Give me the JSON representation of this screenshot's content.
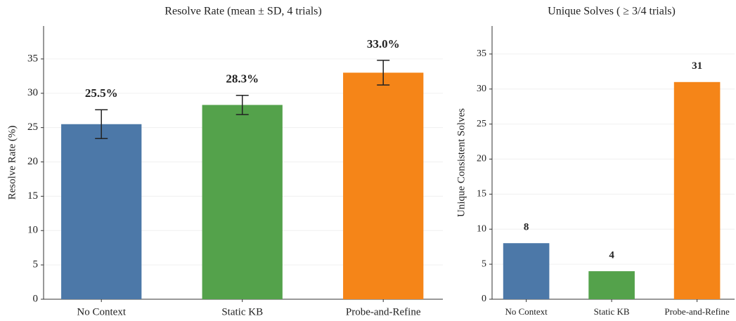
{
  "chart_data": [
    {
      "type": "bar",
      "title": "Resolve Rate (mean ± SD, 4 trials)",
      "ylabel": "Resolve Rate (%)",
      "categories": [
        "No Context",
        "Static KB",
        "Probe-and-Refine"
      ],
      "values": [
        25.5,
        28.3,
        33.0
      ],
      "errors": [
        2.1,
        1.4,
        1.8
      ],
      "value_labels": [
        "25.5%",
        "28.3%",
        "33.0%"
      ],
      "colors": [
        "#4c78a8",
        "#54a24b",
        "#f58518"
      ],
      "ylim": [
        0,
        39.8
      ],
      "yticks": [
        0,
        5,
        10,
        15,
        20,
        25,
        30,
        35
      ],
      "grid": true
    },
    {
      "type": "bar",
      "title": "Unique Solves ( ≥ 3/4 trials)",
      "ylabel": "Unique Consistent Solves",
      "categories": [
        "No Context",
        "Static KB",
        "Probe-and-Refine"
      ],
      "values": [
        8,
        4,
        31
      ],
      "colors": [
        "#4c78a8",
        "#54a24b",
        "#f58518"
      ],
      "ylim": [
        0,
        39
      ],
      "yticks": [
        0,
        5,
        10,
        15,
        20,
        25,
        30,
        35
      ],
      "grid": true
    }
  ]
}
